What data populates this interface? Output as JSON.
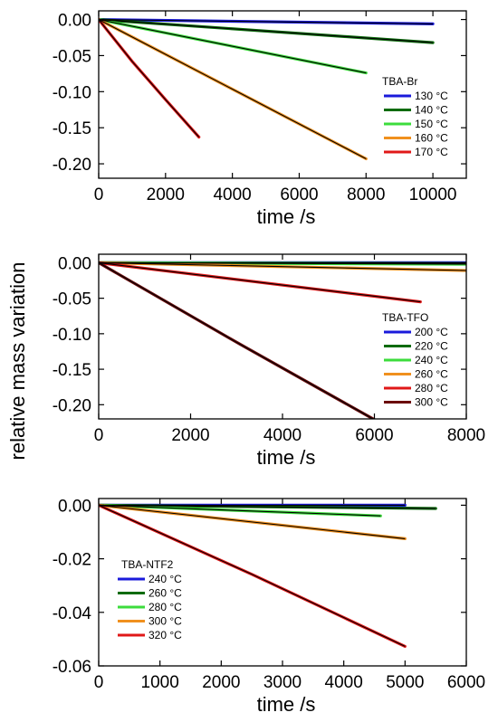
{
  "shared_ylabel": "relative mass variation",
  "chart_data": [
    {
      "type": "line",
      "xlabel": "time /s",
      "xlim": [
        0,
        11000
      ],
      "ylim": [
        -0.22,
        0.012
      ],
      "xticks": [
        0,
        2000,
        4000,
        6000,
        8000,
        10000
      ],
      "yticks": [
        0.0,
        -0.05,
        -0.1,
        -0.15,
        -0.2
      ],
      "ytick_labels": [
        "0.00",
        "-0.05",
        "-0.10",
        "-0.15",
        "-0.20"
      ],
      "legend_title": "TBA-Br",
      "legend_position": "right",
      "fit_line_color": "#000000",
      "series": [
        {
          "name": "130 °C",
          "color": "#1a1adb",
          "x": [
            0,
            10000
          ],
          "y": [
            0,
            -0.006
          ]
        },
        {
          "name": "140 °C",
          "color": "#0b6b0b",
          "x": [
            0,
            10000
          ],
          "y": [
            0,
            -0.032
          ]
        },
        {
          "name": "150 °C",
          "color": "#3cdc3c",
          "x": [
            0,
            8000
          ],
          "y": [
            0,
            -0.074
          ]
        },
        {
          "name": "160 °C",
          "color": "#f0901e",
          "x": [
            0,
            8000
          ],
          "y": [
            0,
            -0.193
          ]
        },
        {
          "name": "170 °C",
          "color": "#e01818",
          "x": [
            0,
            1000,
            2000,
            3000
          ],
          "y": [
            0,
            -0.058,
            -0.111,
            -0.163
          ]
        }
      ]
    },
    {
      "type": "line",
      "xlabel": "time /s",
      "xlim": [
        0,
        8000
      ],
      "ylim": [
        -0.22,
        0.012
      ],
      "xticks": [
        0,
        2000,
        4000,
        6000,
        8000
      ],
      "yticks": [
        0.0,
        -0.05,
        -0.1,
        -0.15,
        -0.2
      ],
      "ytick_labels": [
        "0.00",
        "-0.05",
        "-0.10",
        "-0.15",
        "-0.20"
      ],
      "legend_title": "TBA-TFO",
      "legend_position": "right",
      "fit_line_color": "#000000",
      "series": [
        {
          "name": "200 °C",
          "color": "#1a1adb",
          "x": [
            0,
            8000
          ],
          "y": [
            0,
            0.0
          ]
        },
        {
          "name": "220 °C",
          "color": "#0b6b0b",
          "x": [
            0,
            8000
          ],
          "y": [
            0,
            -0.001
          ]
        },
        {
          "name": "240 °C",
          "color": "#3cdc3c",
          "x": [
            0,
            8000
          ],
          "y": [
            0,
            -0.002
          ]
        },
        {
          "name": "260 °C",
          "color": "#f0901e",
          "x": [
            0,
            8000
          ],
          "y": [
            0,
            -0.011
          ]
        },
        {
          "name": "280 °C",
          "color": "#e01818",
          "x": [
            0,
            7000
          ],
          "y": [
            0,
            -0.055
          ]
        },
        {
          "name": "300 °C",
          "color": "#6b0a0a",
          "x": [
            0,
            3000,
            6000
          ],
          "y": [
            0,
            -0.112,
            -0.221
          ]
        }
      ]
    },
    {
      "type": "line",
      "xlabel": "time /s",
      "xlim": [
        0,
        6000
      ],
      "ylim": [
        -0.06,
        0.0025
      ],
      "xticks": [
        0,
        1000,
        2000,
        3000,
        4000,
        5000,
        6000
      ],
      "yticks": [
        0.0,
        -0.02,
        -0.04,
        -0.06
      ],
      "ytick_labels": [
        "0.00",
        "-0.02",
        "-0.04",
        "-0.06"
      ],
      "legend_title": "TBA-NTF2",
      "legend_position": "bottom-left",
      "fit_line_color": "#000000",
      "series": [
        {
          "name": "240 °C",
          "color": "#1a1adb",
          "x": [
            0,
            5000
          ],
          "y": [
            0,
            0.0
          ]
        },
        {
          "name": "260 °C",
          "color": "#0b6b0b",
          "x": [
            0,
            5500
          ],
          "y": [
            0,
            -0.0012
          ]
        },
        {
          "name": "280 °C",
          "color": "#3cdc3c",
          "x": [
            0,
            4600
          ],
          "y": [
            0,
            -0.004
          ]
        },
        {
          "name": "300 °C",
          "color": "#f0901e",
          "x": [
            0,
            5000
          ],
          "y": [
            0,
            -0.0125
          ]
        },
        {
          "name": "320 °C",
          "color": "#e01818",
          "x": [
            0,
            2500,
            5000
          ],
          "y": [
            0,
            -0.0258,
            -0.0527
          ]
        }
      ]
    }
  ]
}
